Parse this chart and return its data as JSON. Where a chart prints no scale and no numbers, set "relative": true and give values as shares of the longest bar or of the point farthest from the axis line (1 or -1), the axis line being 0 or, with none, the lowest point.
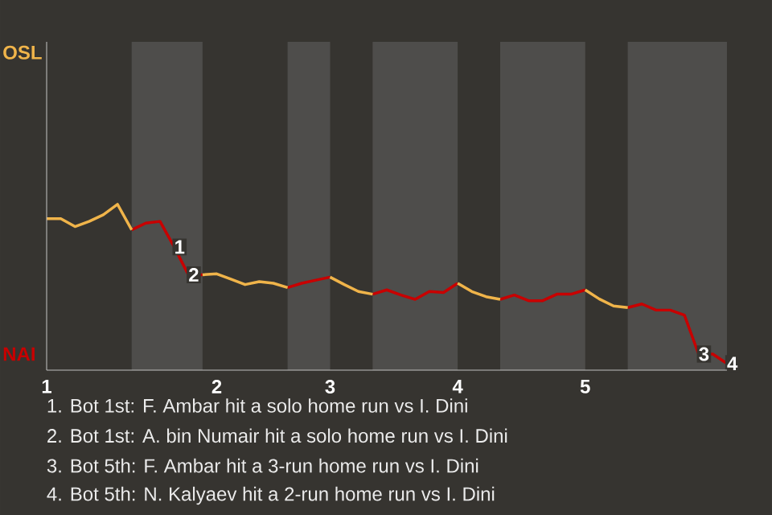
{
  "chart_data": {
    "type": "line",
    "relative": true,
    "categories": [
      "1",
      null,
      null,
      null,
      null,
      null,
      null,
      null,
      null,
      null,
      null,
      null,
      "2",
      null,
      null,
      null,
      null,
      null,
      null,
      null,
      "3",
      null,
      null,
      null,
      null,
      null,
      null,
      null,
      null,
      "4",
      null,
      null,
      null,
      null,
      null,
      null,
      null,
      null,
      "5",
      null,
      null,
      null,
      null,
      null,
      null,
      null,
      null,
      null,
      null
    ],
    "series": [
      {
        "color": "#c80000",
        "values": [
          null,
          null,
          null,
          null,
          null,
          null,
          0.846,
          0.887,
          0.897,
          0.743,
          0.575,
          0.575,
          null,
          null,
          null,
          null,
          null,
          0.498,
          0.524,
          0.543,
          0.561,
          null,
          null,
          0.458,
          0.484,
          0.453,
          0.427,
          0.474,
          0.468,
          0.524,
          null,
          null,
          0.427,
          0.453,
          0.419,
          0.419,
          0.458,
          0.458,
          0.484,
          null,
          null,
          0.377,
          0.399,
          0.362,
          0.362,
          0.332,
          0.097,
          0.097,
          0.04
        ]
      },
      {
        "color": "#f0b44a",
        "values": [
          0.913,
          0.913,
          0.866,
          0.897,
          0.937,
          1,
          0.846,
          null,
          null,
          null,
          null,
          0.575,
          0.581,
          0.549,
          0.516,
          0.534,
          0.524,
          0.498,
          null,
          null,
          0.561,
          0.516,
          0.474,
          0.458,
          null,
          null,
          null,
          null,
          null,
          0.524,
          0.474,
          0.443,
          0.427,
          null,
          null,
          null,
          null,
          null,
          0.484,
          0.429,
          0.387,
          0.377,
          null,
          null,
          null,
          null,
          null,
          null,
          null
        ]
      }
    ],
    "annotations": [
      {
        "text": "OSL"
      },
      {
        "text": "NAI"
      },
      {
        "text": "1",
        "y": 0.743
      },
      {
        "text": "2",
        "y": 0.575
      },
      {
        "text": "3",
        "y": 0.097
      },
      {
        "text": "4",
        "y": 0.04
      },
      "1. Bot 1st: F. Ambar hit a solo home run vs I. Dini",
      "2. Bot 1st: A. bin Numair hit a solo home run vs I. Dini",
      "3. Bot 5th: F. Ambar hit a 3-run home run vs I. Dini",
      "4. Bot 5th: N. Kalyaev hit a 2-run home run vs I. Dini"
    ]
  }
}
